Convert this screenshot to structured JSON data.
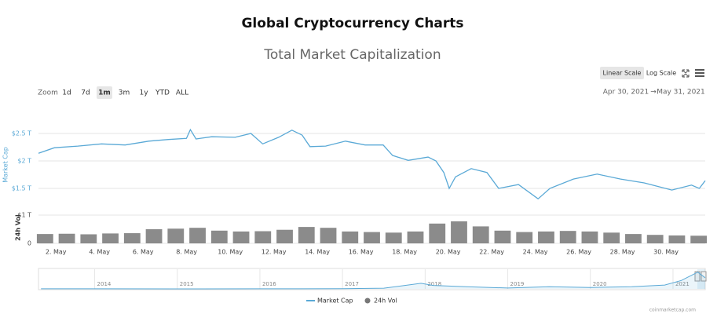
{
  "ui": {
    "title": "Global Cryptocurrency Charts",
    "subtitle": "Total Market Capitalization",
    "scale_buttons": [
      "Linear Scale",
      "Log Scale"
    ],
    "active_scale": "Linear Scale",
    "zoom_label": "Zoom",
    "zoom_buttons": [
      "1d",
      "7d",
      "1m",
      "3m",
      "1y",
      "YTD",
      "ALL"
    ],
    "active_zoom": "1m",
    "date_from": "Apr 30, 2021",
    "date_arrow": "→",
    "date_to": "May 31, 2021",
    "credit": "coinmarketcap.com"
  },
  "chart_data": {
    "type": "line",
    "grid": true,
    "x": [
      1.2,
      1.93,
      3.01,
      4.09,
      5.18,
      6.26,
      7.16,
      7.99,
      8.17,
      8.43,
      9.15,
      10.23,
      10.95,
      11.49,
      12.22,
      12.83,
      13.3,
      13.66,
      14.38,
      15.29,
      16.19,
      17.02,
      17.45,
      18.17,
      19.08,
      19.44,
      19.8,
      20.05,
      20.34,
      21.06,
      21.78,
      22.32,
      23.23,
      24.13,
      24.67,
      25.75,
      26.84,
      27.92,
      29.0,
      30.27,
      31.17,
      31.53,
      31.8
    ],
    "xlim": [
      1.2,
      31.8
    ],
    "xticks": [
      {
        "value": 2,
        "label": "2. May"
      },
      {
        "value": 4,
        "label": "4. May"
      },
      {
        "value": 6,
        "label": "6. May"
      },
      {
        "value": 8,
        "label": "8. May"
      },
      {
        "value": 10,
        "label": "10. May"
      },
      {
        "value": 12,
        "label": "12. May"
      },
      {
        "value": 14,
        "label": "14. May"
      },
      {
        "value": 16,
        "label": "16. May"
      },
      {
        "value": 18,
        "label": "18. May"
      },
      {
        "value": 20,
        "label": "20. May"
      },
      {
        "value": 22,
        "label": "22. May"
      },
      {
        "value": 24,
        "label": "24. May"
      },
      {
        "value": 26,
        "label": "26. May"
      },
      {
        "value": 28,
        "label": "28. May"
      },
      {
        "value": 30,
        "label": "30. May"
      }
    ],
    "ylabel": "Market Cap",
    "ylim": [
      1.2,
      2.7
    ],
    "yticks": [
      {
        "value": 1.5,
        "label": "$1.5 T"
      },
      {
        "value": 2,
        "label": "$2 T"
      },
      {
        "value": 2.5,
        "label": "$2.5 T"
      }
    ],
    "y2label": "24h Vol",
    "y2lim": [
      0,
      1
    ],
    "y2ticks": [
      0,
      {
        "value": 1,
        "label": "$1 T"
      }
    ],
    "series": [
      {
        "name": "Market Cap",
        "color": "#5aa9d6",
        "values": [
          2.14,
          2.24,
          2.27,
          2.31,
          2.29,
          2.36,
          2.39,
          2.41,
          2.57,
          2.4,
          2.44,
          2.43,
          2.5,
          2.31,
          2.43,
          2.56,
          2.47,
          2.26,
          2.27,
          2.36,
          2.29,
          2.29,
          2.1,
          2.01,
          2.07,
          2.0,
          1.79,
          1.5,
          1.71,
          1.86,
          1.79,
          1.5,
          1.57,
          1.31,
          1.5,
          1.67,
          1.76,
          1.67,
          1.6,
          1.47,
          1.56,
          1.5,
          1.64
        ]
      },
      {
        "name": "24h Vol",
        "color": "#777777",
        "type": "bar",
        "axis": "y2",
        "x": [
          1.5,
          2.5,
          3.5,
          4.5,
          5.5,
          6.5,
          7.5,
          8.5,
          9.5,
          10.5,
          11.5,
          12.5,
          13.5,
          14.5,
          15.5,
          16.5,
          17.5,
          18.5,
          19.5,
          20.5,
          21.5,
          22.5,
          23.5,
          24.5,
          25.5,
          26.5,
          27.5,
          28.5,
          29.5,
          30.5,
          31.5
        ],
        "values": [
          0.33,
          0.34,
          0.32,
          0.35,
          0.36,
          0.5,
          0.52,
          0.55,
          0.45,
          0.42,
          0.43,
          0.48,
          0.58,
          0.55,
          0.42,
          0.4,
          0.38,
          0.42,
          0.7,
          0.78,
          0.6,
          0.45,
          0.4,
          0.42,
          0.44,
          0.42,
          0.38,
          0.33,
          0.3,
          0.28,
          0.27
        ]
      }
    ],
    "navigator": {
      "x": [
        2013.35,
        2014,
        2015,
        2016,
        2017,
        2017.5,
        2017.95,
        2018.1,
        2018.5,
        2019,
        2019.5,
        2020,
        2020.5,
        2020.9,
        2021.1,
        2021.3,
        2021.39
      ],
      "values": [
        0.01,
        0.01,
        0.005,
        0.007,
        0.02,
        0.1,
        0.8,
        0.5,
        0.3,
        0.12,
        0.3,
        0.2,
        0.3,
        0.55,
        1.2,
        2.4,
        1.6
      ],
      "xlim": [
        2013.32,
        2021.39
      ],
      "ylim": [
        0,
        2.7
      ],
      "xticks": [
        2014,
        2015,
        2016,
        2017,
        2018,
        2019,
        2020,
        2021
      ],
      "color": "#5aa9d6"
    }
  }
}
